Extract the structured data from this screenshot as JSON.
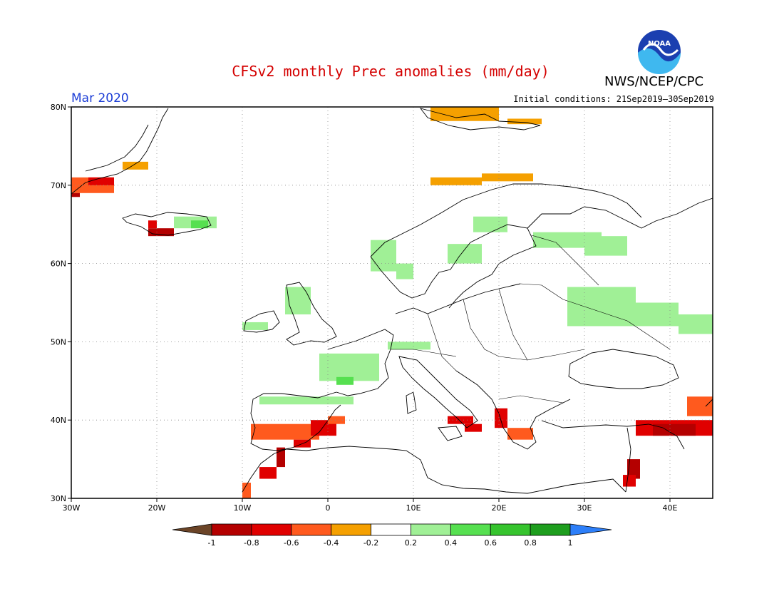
{
  "header": {
    "title": "CFSv2 monthly Prec anomalies (mm/day)",
    "agency": "NWS/NCEP/CPC",
    "valid_month": "Mar 2020",
    "initial_conditions": "Initial conditions: 21Sep2019—30Sep2019",
    "logo_text": "NOAA"
  },
  "map": {
    "lon_range": [
      -30,
      45
    ],
    "lat_range": [
      30,
      80
    ],
    "lat_ticks": [
      "30N",
      "40N",
      "50N",
      "60N",
      "70N",
      "80N"
    ],
    "lon_ticks": [
      "30W",
      "20W",
      "10W",
      "0",
      "10E",
      "20E",
      "30E",
      "40E"
    ],
    "grid": true
  },
  "colorbar": {
    "labels": [
      "-1",
      "-0.8",
      "-0.6",
      "-0.4",
      "-0.2",
      "0.2",
      "0.4",
      "0.6",
      "0.8",
      "1"
    ],
    "colors": [
      "#6b4427",
      "#b40000",
      "#e00000",
      "#ff5a1e",
      "#f5a000",
      "#ffffff",
      "#a0f096",
      "#56e050",
      "#36c42e",
      "#1e9e1e",
      "#2d7ff9"
    ]
  },
  "anomaly_regions": [
    {
      "name": "Svalbard",
      "sign": "dry",
      "level": -0.3
    },
    {
      "name": "Greenland east coast",
      "sign": "dry",
      "level": -0.5
    },
    {
      "name": "Iceland west",
      "sign": "dry",
      "level": -0.6
    },
    {
      "name": "Iceland east",
      "sign": "wet",
      "level": 0.4
    },
    {
      "name": "Norway coast",
      "sign": "wet",
      "level": 0.3
    },
    {
      "name": "Fennoscandia interior",
      "sign": "wet",
      "level": 0.3
    },
    {
      "name": "Western Russia",
      "sign": "wet",
      "level": 0.3
    },
    {
      "name": "British Isles",
      "sign": "wet",
      "level": 0.3
    },
    {
      "name": "France",
      "sign": "wet",
      "level": 0.3
    },
    {
      "name": "Iberian Peninsula",
      "sign": "dry",
      "level": -0.6
    },
    {
      "name": "Morocco",
      "sign": "dry",
      "level": -0.6
    },
    {
      "name": "Southern Italy",
      "sign": "dry",
      "level": -0.5
    },
    {
      "name": "Greece",
      "sign": "dry",
      "level": -0.5
    },
    {
      "name": "Eastern Turkey",
      "sign": "dry",
      "level": -0.8
    },
    {
      "name": "Levant",
      "sign": "dry",
      "level": -0.9
    }
  ]
}
